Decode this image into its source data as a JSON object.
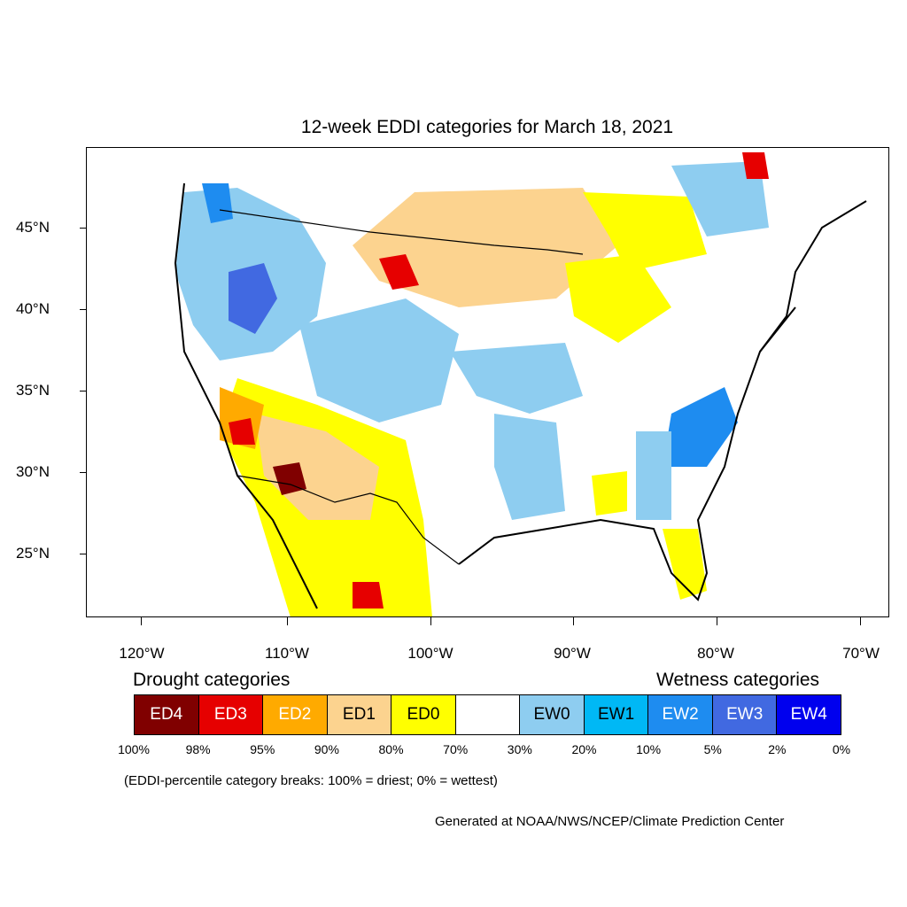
{
  "title": "12-week EDDI categories for March 18, 2021",
  "map": {
    "lat_ticks": [
      {
        "lat": 45,
        "label": "45°N"
      },
      {
        "lat": 40,
        "label": "40°N"
      },
      {
        "lat": 35,
        "label": "35°N"
      },
      {
        "lat": 30,
        "label": "30°N"
      },
      {
        "lat": 25,
        "label": "25°N"
      }
    ],
    "lon_ticks": [
      {
        "lon": -120,
        "label": "120°W"
      },
      {
        "lon": -110,
        "label": "110°W"
      },
      {
        "lon": -100,
        "label": "100°W"
      },
      {
        "lon": -90,
        "label": "90°W"
      },
      {
        "lon": -80,
        "label": "80°W"
      },
      {
        "lon": -70,
        "label": "70°W"
      }
    ]
  },
  "legend": {
    "drought_heading": "Drought categories",
    "wetness_heading": "Wetness categories",
    "categories": [
      {
        "label": "ED4",
        "color": "#800000",
        "text_color": "#ffffff"
      },
      {
        "label": "ED3",
        "color": "#e60000",
        "text_color": "#ffffff"
      },
      {
        "label": "ED2",
        "color": "#ffaa00",
        "text_color": "#ffffff"
      },
      {
        "label": "ED1",
        "color": "#fcd38f",
        "text_color": "#000000"
      },
      {
        "label": "ED0",
        "color": "#ffff00",
        "text_color": "#000000"
      },
      {
        "label": "",
        "color": "#ffffff",
        "text_color": "#000000"
      },
      {
        "label": "EW0",
        "color": "#8ecdf0",
        "text_color": "#000000"
      },
      {
        "label": "EW1",
        "color": "#00b8f5",
        "text_color": "#000000"
      },
      {
        "label": "EW2",
        "color": "#1e8cf0",
        "text_color": "#ffffff"
      },
      {
        "label": "EW3",
        "color": "#4169e1",
        "text_color": "#ffffff"
      },
      {
        "label": "EW4",
        "color": "#0000ee",
        "text_color": "#ffffff"
      }
    ],
    "breaks": [
      "100%",
      "98%",
      "95%",
      "90%",
      "80%",
      "70%",
      "30%",
      "20%",
      "10%",
      "5%",
      "2%",
      "0%"
    ]
  },
  "note": "(EDDI-percentile category breaks: 100% = driest; 0% = wettest)",
  "credit": "Generated at NOAA/NWS/NCEP/Climate Prediction Center"
}
